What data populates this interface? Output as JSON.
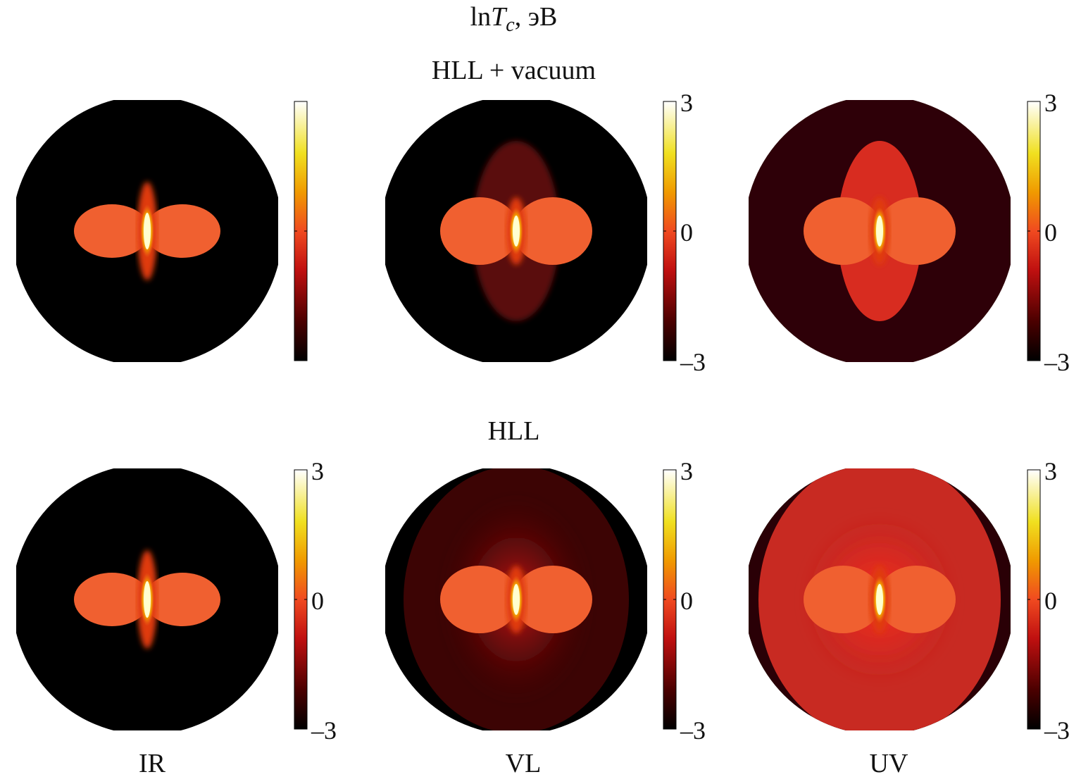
{
  "figure": {
    "title": {
      "prefix": "ln",
      "var": "T",
      "sub": "c",
      "suffix": ", эВ"
    },
    "rows": [
      {
        "label": "HLL + vacuum",
        "panels": [
          {
            "column": "IR",
            "ticks": [
              "",
              "",
              ""
            ]
          },
          {
            "column": "VL",
            "ticks": [
              "3",
              "0",
              "–3"
            ]
          },
          {
            "column": "UV",
            "ticks": [
              "3",
              "0",
              "–3"
            ]
          }
        ]
      },
      {
        "label": "HLL",
        "panels": [
          {
            "column": "IR",
            "ticks": [
              "3",
              "0",
              "–3"
            ]
          },
          {
            "column": "VL",
            "ticks": [
              "3",
              "0",
              "–3"
            ]
          },
          {
            "column": "UV",
            "ticks": [
              "3",
              "0",
              "–3"
            ]
          }
        ]
      }
    ],
    "columns": [
      "IR",
      "VL",
      "UV"
    ],
    "colormap": {
      "name": "hot",
      "range": [
        -3,
        3
      ],
      "stops": [
        "#000000",
        "#5a0000",
        "#d01010",
        "#f04020",
        "#f0a000",
        "#f0e020",
        "#ffffff"
      ]
    }
  }
}
